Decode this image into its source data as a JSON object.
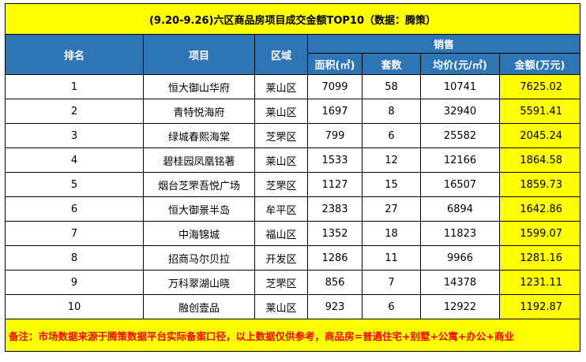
{
  "title": "(9.20-9.26)六区商品房项目成交金额TOP10（数据：腾策）",
  "headers": {
    "rank": "排名",
    "project": "项目",
    "district": "区域",
    "sales": "销售",
    "area": "面积(㎡)",
    "units": "套数",
    "avg_price": "均价(元/㎡)",
    "amount": "金额(万元)"
  },
  "rows": [
    {
      "rank": "1",
      "project": "恒大御山华府",
      "district": "莱山区",
      "area": "7099",
      "units": "58",
      "avg_price": "10741",
      "amount": "7625.02"
    },
    {
      "rank": "2",
      "project": "青特悦海府",
      "district": "莱山区",
      "area": "1697",
      "units": "8",
      "avg_price": "32940",
      "amount": "5591.41"
    },
    {
      "rank": "3",
      "project": "绿城春熙海棠",
      "district": "芝罘区",
      "area": "799",
      "units": "6",
      "avg_price": "25582",
      "amount": "2045.24"
    },
    {
      "rank": "4",
      "project": "碧桂园凤凰铭著",
      "district": "莱山区",
      "area": "1533",
      "units": "12",
      "avg_price": "12166",
      "amount": "1864.58"
    },
    {
      "rank": "5",
      "project": "烟台芝罘吾悦广场",
      "district": "芝罘区",
      "area": "1127",
      "units": "15",
      "avg_price": "16507",
      "amount": "1859.73"
    },
    {
      "rank": "6",
      "project": "恒大御景半岛",
      "district": "牟平区",
      "area": "2383",
      "units": "27",
      "avg_price": "6894",
      "amount": "1642.86"
    },
    {
      "rank": "7",
      "project": "中海锦城",
      "district": "福山区",
      "area": "1352",
      "units": "18",
      "avg_price": "11823",
      "amount": "1599.07"
    },
    {
      "rank": "8",
      "project": "招商马尔贝拉",
      "district": "开发区",
      "area": "1286",
      "units": "11",
      "avg_price": "9966",
      "amount": "1281.16"
    },
    {
      "rank": "9",
      "project": "万科翠湖山晓",
      "district": "芝罘区",
      "area": "856",
      "units": "7",
      "avg_price": "14378",
      "amount": "1231.11"
    },
    {
      "rank": "10",
      "project": "融创壹品",
      "district": "莱山区",
      "area": "923",
      "units": "6",
      "avg_price": "12922",
      "amount": "1192.87"
    }
  ],
  "note": "备注：市场数据来源于腾策数据平台实际备案口径，以上数据仅供参考，商品房=普通住宅+别墅+公寓+办公+商业"
}
